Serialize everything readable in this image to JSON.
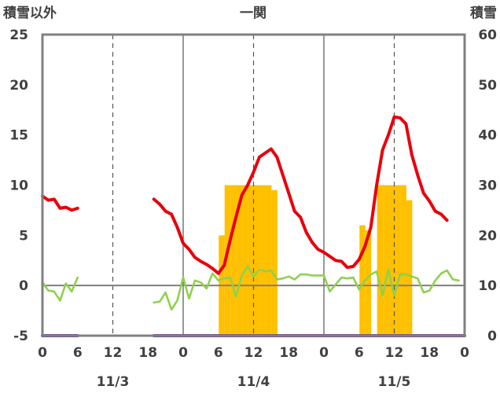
{
  "header": {
    "left_label": "積雪以外",
    "title": "一関",
    "right_label": "積雪"
  },
  "axes": {
    "left_ticks": [
      "25",
      "20",
      "15",
      "10",
      "5",
      "0",
      "-5"
    ],
    "right_ticks": [
      "60",
      "50",
      "40",
      "30",
      "20",
      "10",
      "0"
    ],
    "x_ticks": [
      "0",
      "6",
      "12",
      "18",
      "0",
      "6",
      "12",
      "18",
      "0",
      "6",
      "12",
      "18",
      "0"
    ],
    "dates": [
      "11/3",
      "11/4",
      "11/5"
    ]
  },
  "colors": {
    "temperature": "#e8000b",
    "wind": "#8fd14f",
    "snow_bar": "#ffc000",
    "baseline": "#7030a0",
    "frame": "#808080",
    "zero_line": "#7f7f7f"
  },
  "chart_data": {
    "type": "line",
    "title": "一関",
    "ylabel_left": "積雪以外",
    "ylabel_right": "積雪",
    "ylim_left": [
      -5,
      25
    ],
    "ylim_right": [
      0,
      60
    ],
    "x_range_hours": [
      0,
      72
    ],
    "dates": [
      "11/3",
      "11/4",
      "11/5"
    ],
    "grid": "dashed vertical at 12h offsets, solid at day boundaries",
    "series": [
      {
        "axis": "left",
        "color": "#e8000b",
        "points": [
          [
            0,
            8.9
          ],
          [
            1,
            8.5
          ],
          [
            2,
            8.6
          ],
          [
            3,
            7.7
          ],
          [
            4,
            7.8
          ],
          [
            5,
            7.5
          ],
          [
            6,
            7.7
          ],
          null,
          [
            19,
            8.6
          ],
          [
            20,
            8.1
          ],
          [
            21,
            7.4
          ],
          [
            22,
            7.1
          ],
          [
            23,
            5.8
          ],
          [
            24,
            4.2
          ],
          [
            25,
            3.6
          ],
          [
            26,
            2.8
          ],
          [
            27,
            2.4
          ],
          [
            28,
            2.1
          ],
          [
            29,
            1.7
          ],
          [
            30,
            1.2
          ],
          [
            31,
            2.0
          ],
          [
            32,
            4.5
          ],
          [
            33,
            6.8
          ],
          [
            34,
            9.0
          ],
          [
            35,
            10.0
          ],
          [
            36,
            11.3
          ],
          [
            37,
            12.8
          ],
          [
            38,
            13.2
          ],
          [
            39,
            13.6
          ],
          [
            40,
            12.8
          ],
          [
            41,
            11.0
          ],
          [
            42,
            9.2
          ],
          [
            43,
            7.4
          ],
          [
            44,
            6.8
          ],
          [
            45,
            5.3
          ],
          [
            46,
            4.3
          ],
          [
            47,
            3.6
          ],
          [
            48,
            3.3
          ],
          [
            49,
            2.9
          ],
          [
            50,
            2.5
          ],
          [
            51,
            2.4
          ],
          [
            52,
            1.8
          ],
          [
            53,
            1.9
          ],
          [
            54,
            2.6
          ],
          [
            55,
            3.9
          ],
          [
            56,
            5.8
          ],
          [
            57,
            10.0
          ],
          [
            58,
            13.5
          ],
          [
            59,
            15.0
          ],
          [
            60,
            16.8
          ],
          [
            61,
            16.7
          ],
          [
            62,
            16.1
          ],
          [
            63,
            13.0
          ],
          [
            64,
            11.0
          ],
          [
            65,
            9.2
          ],
          [
            66,
            8.4
          ],
          [
            67,
            7.4
          ],
          [
            68,
            7.1
          ],
          [
            69,
            6.5
          ]
        ]
      },
      {
        "axis": "left",
        "color": "#8fd14f",
        "points": [
          [
            0,
            0.3
          ],
          [
            1,
            -0.5
          ],
          [
            2,
            -0.6
          ],
          [
            3,
            -1.5
          ],
          [
            4,
            0.2
          ],
          [
            5,
            -0.6
          ],
          [
            6,
            0.8
          ],
          null,
          [
            19,
            -1.7
          ],
          [
            20,
            -1.6
          ],
          [
            21,
            -0.7
          ],
          [
            22,
            -2.4
          ],
          [
            23,
            -1.5
          ],
          [
            24,
            0.8
          ],
          [
            25,
            -1.3
          ],
          [
            26,
            0.5
          ],
          [
            27,
            0.3
          ],
          [
            28,
            -0.3
          ],
          [
            29,
            1.2
          ],
          [
            30,
            0.5
          ],
          [
            31,
            0.7
          ],
          [
            32,
            0.8
          ],
          [
            33,
            -1.1
          ],
          [
            34,
            1.0
          ],
          [
            35,
            1.9
          ],
          [
            36,
            0.9
          ],
          [
            37,
            1.6
          ],
          [
            38,
            1.4
          ],
          [
            39,
            1.5
          ],
          [
            40,
            0.6
          ],
          [
            41,
            0.7
          ],
          [
            42,
            0.9
          ],
          [
            43,
            0.6
          ],
          [
            44,
            1.1
          ],
          [
            45,
            1.1
          ],
          [
            46,
            1.0
          ],
          [
            47,
            1.0
          ],
          [
            48,
            1.0
          ],
          [
            49,
            -0.6
          ],
          [
            50,
            0.1
          ],
          [
            51,
            0.8
          ],
          [
            52,
            0.7
          ],
          [
            53,
            0.8
          ],
          [
            54,
            -0.4
          ],
          [
            55,
            0.5
          ],
          [
            56,
            1.1
          ],
          [
            57,
            1.4
          ],
          [
            58,
            -1.0
          ],
          [
            59,
            1.6
          ],
          [
            60,
            -1.0
          ],
          [
            61,
            1.1
          ],
          [
            62,
            1.1
          ],
          [
            63,
            0.9
          ],
          [
            64,
            0.7
          ],
          [
            65,
            -0.7
          ],
          [
            66,
            -0.5
          ],
          [
            67,
            0.5
          ],
          [
            68,
            1.2
          ],
          [
            69,
            1.5
          ],
          [
            70,
            0.6
          ],
          [
            71,
            0.5
          ]
        ]
      },
      {
        "axis": "right",
        "color": "#7030a0",
        "points": [
          [
            0,
            0
          ],
          [
            6,
            0
          ],
          null,
          [
            19,
            0
          ],
          [
            72,
            0
          ]
        ]
      }
    ],
    "bars": {
      "axis": "right",
      "color": "#ffc000",
      "hours": [
        31,
        32,
        33,
        34,
        35,
        36,
        37,
        38,
        39,
        40,
        55,
        56,
        58,
        59,
        60,
        61,
        62,
        63
      ],
      "values": [
        20,
        30,
        30,
        30,
        30,
        30,
        30,
        30,
        30,
        29,
        22,
        21,
        30,
        30,
        30,
        30,
        30,
        27
      ]
    }
  }
}
